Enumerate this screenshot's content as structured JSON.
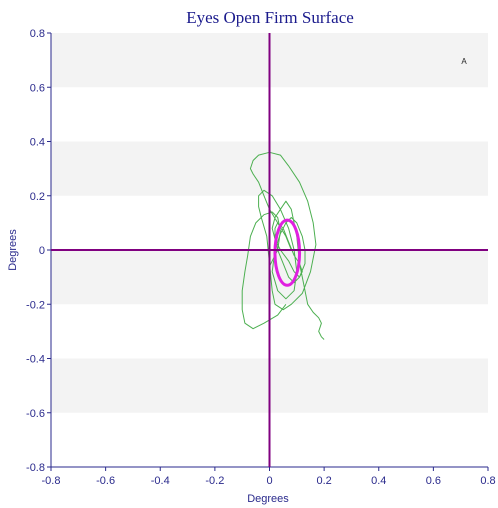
{
  "chart_data": {
    "type": "line",
    "title": "Eyes Open Firm Surface",
    "xlabel": "Degrees",
    "ylabel": "Degrees",
    "corner_label": "A",
    "xlim": [
      -0.8,
      0.8
    ],
    "ylim": [
      -0.8,
      0.8
    ],
    "xticks": [
      "-0.8",
      "-0.6",
      "-0.4",
      "-0.2",
      "0",
      "0.2",
      "0.4",
      "0.6",
      "0.8"
    ],
    "yticks": [
      "0.8",
      "0.6",
      "0.4",
      "0.2",
      "0",
      "-0.2",
      "-0.4",
      "-0.6",
      "-0.8"
    ],
    "grid": "alternating horizontal bands",
    "colors": {
      "path": "#4caf50",
      "ellipse": "#e020e0",
      "crosshair": "#800080",
      "band": "#f3f3f3",
      "text": "#2a2a8c"
    },
    "series": [
      {
        "kind": "sway-path",
        "x": [
          0.08,
          0.06,
          0.03,
          0.0,
          -0.02,
          -0.04,
          -0.06,
          -0.07,
          -0.06,
          -0.04,
          0.0,
          0.04,
          0.07,
          0.11,
          0.14,
          0.16,
          0.17,
          0.15,
          0.12,
          0.08,
          0.05,
          0.02,
          0.01,
          0.0,
          -0.01,
          -0.03,
          -0.04,
          -0.04,
          -0.02,
          0.01,
          0.04,
          0.07,
          0.09,
          0.1,
          0.09,
          0.06,
          0.03,
          0.01,
          0.02,
          0.04,
          0.06,
          0.08,
          0.1,
          0.12,
          0.13,
          0.13,
          0.11,
          0.09,
          0.07,
          0.05,
          0.03,
          0.02,
          0.02,
          0.03,
          0.05,
          0.07,
          0.09,
          0.11,
          0.12,
          0.11,
          0.09,
          0.07,
          0.04,
          0.02,
          0.01,
          0.02,
          0.04,
          0.06,
          0.08,
          0.1,
          0.11,
          0.12,
          0.13,
          0.14,
          0.16,
          0.18,
          0.19,
          0.18,
          0.19,
          0.2
        ],
        "y": [
          0.0,
          0.05,
          0.1,
          0.15,
          0.2,
          0.25,
          0.28,
          0.3,
          0.33,
          0.35,
          0.36,
          0.35,
          0.31,
          0.25,
          0.18,
          0.1,
          0.02,
          -0.08,
          -0.16,
          -0.2,
          -0.22,
          -0.2,
          -0.15,
          -0.05,
          0.05,
          0.12,
          0.16,
          0.2,
          0.22,
          0.2,
          0.15,
          0.08,
          0.0,
          -0.08,
          -0.15,
          -0.18,
          -0.15,
          -0.08,
          0.0,
          0.06,
          0.1,
          0.12,
          0.1,
          0.05,
          0.0,
          -0.05,
          -0.1,
          -0.12,
          -0.1,
          -0.05,
          0.0,
          0.05,
          0.08,
          0.1,
          0.08,
          0.03,
          -0.02,
          -0.05,
          -0.08,
          -0.1,
          -0.08,
          -0.04,
          0.0,
          0.04,
          0.08,
          0.12,
          0.15,
          0.18,
          0.15,
          0.05,
          -0.05,
          -0.1,
          -0.15,
          -0.2,
          -0.23,
          -0.25,
          -0.27,
          -0.3,
          -0.32,
          -0.33
        ]
      },
      {
        "kind": "outer-loop",
        "x": [
          0.06,
          0.03,
          -0.02,
          -0.06,
          -0.09,
          -0.1,
          -0.1,
          -0.09,
          -0.08,
          -0.07,
          -0.05,
          -0.02,
          0.01,
          0.03,
          0.04,
          0.03,
          0.0
        ],
        "y": [
          -0.2,
          -0.24,
          -0.27,
          -0.29,
          -0.27,
          -0.22,
          -0.15,
          -0.08,
          -0.02,
          0.05,
          0.1,
          0.13,
          0.14,
          0.12,
          0.07,
          0.0,
          -0.06
        ]
      },
      {
        "kind": "confidence-ellipse",
        "center": [
          0.065,
          -0.01
        ],
        "rx": 0.045,
        "ry": 0.12
      }
    ]
  }
}
